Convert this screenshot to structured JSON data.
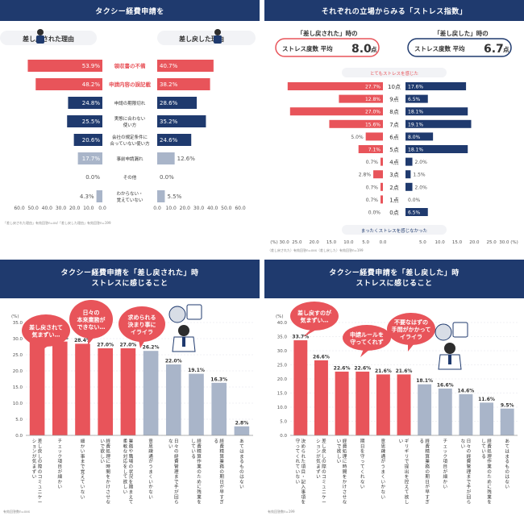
{
  "colors": {
    "red": "#e8545a",
    "navy": "#1f3a6e",
    "gray": "#a9b5c9",
    "pink": "#f4c1c3",
    "light": "#f2f3f6"
  },
  "panels": {
    "p1": {
      "title": "タクシー経費申請を",
      "left_label": "差し戻された理由",
      "right_label": "差し戻した理由",
      "note": "「差し戻された理由」有効回答n=xx/「差し戻した理由」有効回答n=199"
    },
    "p2": {
      "title": "それぞれの立場からみる「ストレス指数」",
      "left_head_a": "「差し戻された」時の",
      "left_head_b": "ストレス度数 平均",
      "left_avg": "8.0",
      "right_head_a": "「差し戻した」時の",
      "right_head_b": "ストレス度数 平均",
      "right_avg": "6.7",
      "unit_point": "点",
      "top_label": "とてもストレスを感じた",
      "bottom_label": "まったくストレスを感じなかった",
      "note": "（差し戻された）有効回答n=xxx（差し戻した）有効回答n=199"
    },
    "p3": {
      "title_line1": "タクシー経費申請を「差し戻された」時",
      "title_line2": "ストレスに感じること",
      "callouts": [
        "差し戻されて\n気まずい…",
        "日々の\n本来業務が\nできない…",
        "求められる\n決まり事に\nイライラ"
      ],
      "note": "有効回答数n=xxx"
    },
    "p4": {
      "title_line1": "タクシー経費申請を「差し戻した」時",
      "title_line2": "ストレスに感じること",
      "callouts": [
        "差し戻すのが\n気まずい…",
        "申請ルールを\n守ってくれず",
        "不要なはずの\n手間がかかって\nイライラ"
      ],
      "note": "有効回答数n=199"
    }
  },
  "chart_data": [
    {
      "type": "bar",
      "orientation": "horizontal-butterfly",
      "title": "タクシー経費申請を",
      "categories": [
        "領収書の不備",
        "申請内容の誤記載",
        "申請の期限切れ",
        "実態に合わない使い方",
        "会社の規定条件に合っていない使い方",
        "事前申請漏れ",
        "その他",
        "わからない・覚えていない"
      ],
      "series": [
        {
          "name": "差し戻された理由",
          "values": [
            53.9,
            48.2,
            24.8,
            25.5,
            20.6,
            17.7,
            0.0,
            4.3
          ]
        },
        {
          "name": "差し戻した理由",
          "values": [
            40.7,
            38.2,
            28.6,
            35.2,
            24.6,
            12.6,
            0.0,
            5.5
          ]
        }
      ],
      "value_suffix": "%",
      "ticks": [
        "60.0",
        "50.0",
        "40.0",
        "30.0",
        "20.0",
        "10.0",
        "0.0"
      ],
      "xlim": [
        0,
        60
      ]
    },
    {
      "type": "bar",
      "orientation": "horizontal-butterfly",
      "title": "それぞれの立場からみる「ストレス指数」",
      "categories": [
        "10点",
        "9点",
        "8点",
        "7点",
        "6点",
        "5点",
        "4点",
        "3点",
        "2点",
        "1点",
        "0点"
      ],
      "series": [
        {
          "name": "差し戻された",
          "values": [
            27.7,
            12.8,
            27.0,
            15.6,
            5.0,
            7.1,
            0.7,
            2.8,
            0.7,
            0.7,
            0.0
          ]
        },
        {
          "name": "差し戻した",
          "values": [
            17.6,
            6.5,
            18.1,
            19.1,
            8.0,
            18.1,
            2.0,
            1.5,
            2.0,
            0.0,
            6.5
          ]
        }
      ],
      "value_suffix": "%",
      "ticks_left": [
        "(%) 30.0",
        "25.0",
        "20.0",
        "15.0",
        "10.0",
        "5.0",
        "0.0"
      ],
      "ticks_right": [
        "5.0",
        "10.0",
        "15.0",
        "20.0",
        "25.0",
        "30.0 (%)"
      ],
      "xlim": [
        0,
        30
      ]
    },
    {
      "type": "bar",
      "title": "タクシー経費申請を「差し戻された」時 ストレスに感じること",
      "categories": [
        "差し戻しの際のコミュニケーションが気まずい",
        "チェック項目が細かい",
        "細かい事まで覚えていない",
        "経費処理に時間をかけさせないで欲しい",
        "業務や職場の状況を踏まえて柔軟な対応をして欲しい",
        "意思疎通がうまくいかない",
        "日々の経費管理まで手が回らない",
        "経費精算作業のために残業をしている",
        "経費精算業務の期日が早すぎる",
        "あてはまるものはない"
      ],
      "values": [
        30.5,
        29.1,
        28.4,
        27.0,
        27.0,
        26.2,
        22.0,
        19.1,
        16.3,
        2.8
      ],
      "highlight_count": 5,
      "ylabel": "(%)",
      "yticks": [
        "0.0",
        "5.0",
        "10.0",
        "15.0",
        "20.0",
        "25.0",
        "30.0",
        "35.0"
      ],
      "ylim": [
        0,
        35
      ]
    },
    {
      "type": "bar",
      "title": "タクシー経費申請を「差し戻した」時 ストレスに感じること",
      "categories": [
        "決められた項目・記入事項を守ってくれていない",
        "差し戻しの際のコミュニケーションが気まずい",
        "経費処理に時間をかけさせないで欲しい",
        "期日を守ってくれない",
        "意思疎通がうまくいかない",
        "ギリギリで提出を控えて欲しい",
        "経費精算業務の期日が早すぎる",
        "チェック項目が細かい",
        "日々の経費管理まで手が回らない",
        "経費処理作業のために残業をしている",
        "あてはまるものはない"
      ],
      "values": [
        33.7,
        26.6,
        22.6,
        22.6,
        21.6,
        21.6,
        18.1,
        16.6,
        14.6,
        11.6,
        9.5
      ],
      "highlight_count": 6,
      "ylabel": "(%)",
      "yticks": [
        "0.0",
        "5.0",
        "10.0",
        "15.0",
        "20.0",
        "25.0",
        "30.0",
        "35.0",
        "40.0"
      ],
      "ylim": [
        0,
        40
      ]
    }
  ]
}
